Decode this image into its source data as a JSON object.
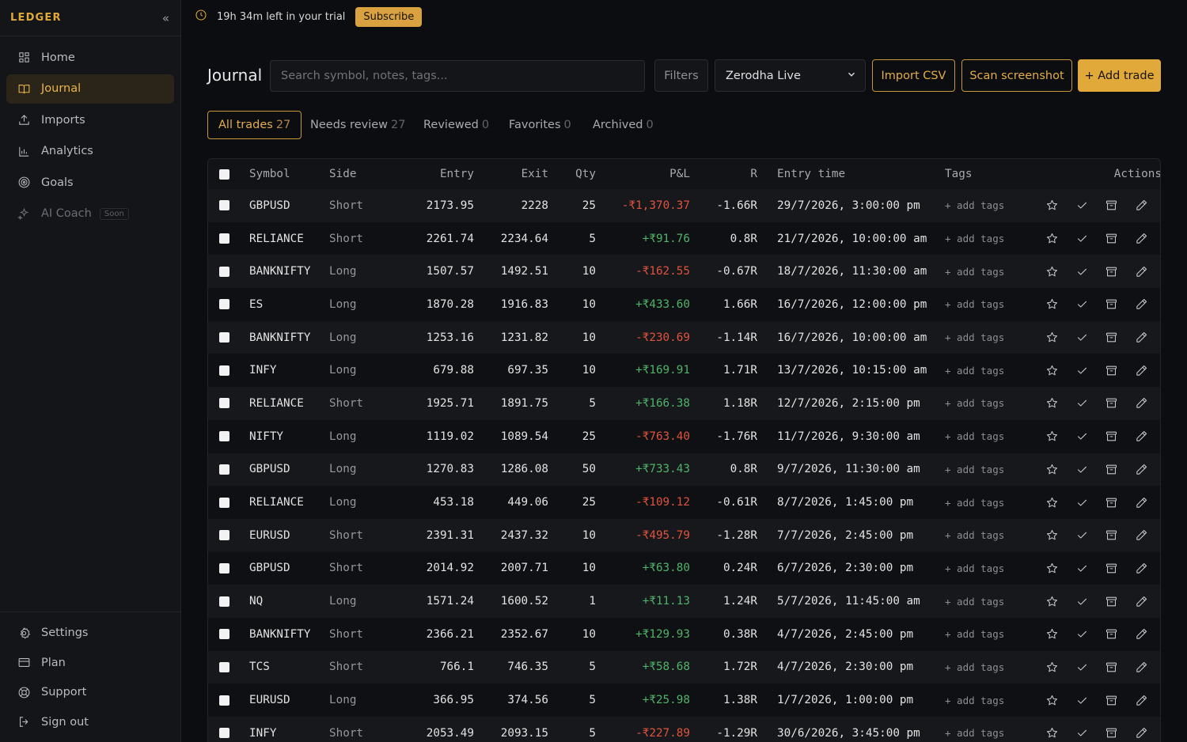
{
  "app": {
    "brand": "LEDGER"
  },
  "sidebar": {
    "items": [
      {
        "label": "Home",
        "icon": "grid-icon"
      },
      {
        "label": "Journal",
        "icon": "book-icon",
        "active": true
      },
      {
        "label": "Imports",
        "icon": "upload-icon"
      },
      {
        "label": "Analytics",
        "icon": "bar-chart-icon"
      },
      {
        "label": "Goals",
        "icon": "target-icon"
      },
      {
        "label": "AI Coach",
        "icon": "sparkles-icon",
        "badge": "Soon"
      }
    ],
    "bottom": [
      {
        "label": "Settings",
        "icon": "gear-icon"
      },
      {
        "label": "Plan",
        "icon": "card-icon"
      },
      {
        "label": "Support",
        "icon": "lifebuoy-icon"
      },
      {
        "label": "Sign out",
        "icon": "logout-icon"
      }
    ]
  },
  "topbar": {
    "trial_text": "19h 34m left in your trial",
    "subscribe_label": "Subscribe"
  },
  "header": {
    "title": "Journal",
    "search_placeholder": "Search symbol, notes, tags...",
    "filters_label": "Filters",
    "account_selected": "Zerodha Live",
    "import_label": "Import CSV",
    "scan_label": "Scan screenshot",
    "add_label": "+ Add trade"
  },
  "tabs": [
    {
      "label": "All trades",
      "count": "27",
      "active": true
    },
    {
      "label": "Needs review",
      "count": "27"
    },
    {
      "label": "Reviewed",
      "count": "0"
    },
    {
      "label": "Favorites",
      "count": "0"
    },
    {
      "label": "Archived",
      "count": "0"
    }
  ],
  "table": {
    "columns": [
      "Symbol",
      "Side",
      "Entry",
      "Exit",
      "Qty",
      "P&L",
      "R",
      "Entry time",
      "Tags",
      "Actions"
    ],
    "add_tags_label": "+ add tags",
    "rows": [
      {
        "symbol": "GBPUSD",
        "side": "Short",
        "entry": "2173.95",
        "exit": "2228",
        "qty": "25",
        "pnl": "-₹1,370.37",
        "r": "-1.66R",
        "time": "29/7/2026, 3:00:00 pm"
      },
      {
        "symbol": "RELIANCE",
        "side": "Short",
        "entry": "2261.74",
        "exit": "2234.64",
        "qty": "5",
        "pnl": "+₹91.76",
        "r": "0.8R",
        "time": "21/7/2026, 10:00:00 am"
      },
      {
        "symbol": "BANKNIFTY",
        "side": "Long",
        "entry": "1507.57",
        "exit": "1492.51",
        "qty": "10",
        "pnl": "-₹162.55",
        "r": "-0.67R",
        "time": "18/7/2026, 11:30:00 am"
      },
      {
        "symbol": "ES",
        "side": "Long",
        "entry": "1870.28",
        "exit": "1916.83",
        "qty": "10",
        "pnl": "+₹433.60",
        "r": "1.66R",
        "time": "16/7/2026, 12:00:00 pm"
      },
      {
        "symbol": "BANKNIFTY",
        "side": "Long",
        "entry": "1253.16",
        "exit": "1231.82",
        "qty": "10",
        "pnl": "-₹230.69",
        "r": "-1.14R",
        "time": "16/7/2026, 10:00:00 am"
      },
      {
        "symbol": "INFY",
        "side": "Long",
        "entry": "679.88",
        "exit": "697.35",
        "qty": "10",
        "pnl": "+₹169.91",
        "r": "1.71R",
        "time": "13/7/2026, 10:15:00 am"
      },
      {
        "symbol": "RELIANCE",
        "side": "Short",
        "entry": "1925.71",
        "exit": "1891.75",
        "qty": "5",
        "pnl": "+₹166.38",
        "r": "1.18R",
        "time": "12/7/2026, 2:15:00 pm"
      },
      {
        "symbol": "NIFTY",
        "side": "Long",
        "entry": "1119.02",
        "exit": "1089.54",
        "qty": "25",
        "pnl": "-₹763.40",
        "r": "-1.76R",
        "time": "11/7/2026, 9:30:00 am"
      },
      {
        "symbol": "GBPUSD",
        "side": "Long",
        "entry": "1270.83",
        "exit": "1286.08",
        "qty": "50",
        "pnl": "+₹733.43",
        "r": "0.8R",
        "time": "9/7/2026, 11:30:00 am"
      },
      {
        "symbol": "RELIANCE",
        "side": "Long",
        "entry": "453.18",
        "exit": "449.06",
        "qty": "25",
        "pnl": "-₹109.12",
        "r": "-0.61R",
        "time": "8/7/2026, 1:45:00 pm"
      },
      {
        "symbol": "EURUSD",
        "side": "Short",
        "entry": "2391.31",
        "exit": "2437.32",
        "qty": "10",
        "pnl": "-₹495.79",
        "r": "-1.28R",
        "time": "7/7/2026, 2:45:00 pm"
      },
      {
        "symbol": "GBPUSD",
        "side": "Short",
        "entry": "2014.92",
        "exit": "2007.71",
        "qty": "10",
        "pnl": "+₹63.80",
        "r": "0.24R",
        "time": "6/7/2026, 2:30:00 pm"
      },
      {
        "symbol": "NQ",
        "side": "Long",
        "entry": "1571.24",
        "exit": "1600.52",
        "qty": "1",
        "pnl": "+₹11.13",
        "r": "1.24R",
        "time": "5/7/2026, 11:45:00 am"
      },
      {
        "symbol": "BANKNIFTY",
        "side": "Short",
        "entry": "2366.21",
        "exit": "2352.67",
        "qty": "10",
        "pnl": "+₹129.93",
        "r": "0.38R",
        "time": "4/7/2026, 2:45:00 pm"
      },
      {
        "symbol": "TCS",
        "side": "Short",
        "entry": "766.1",
        "exit": "746.35",
        "qty": "5",
        "pnl": "+₹58.68",
        "r": "1.72R",
        "time": "4/7/2026, 2:30:00 pm"
      },
      {
        "symbol": "EURUSD",
        "side": "Long",
        "entry": "366.95",
        "exit": "374.56",
        "qty": "5",
        "pnl": "+₹25.98",
        "r": "1.38R",
        "time": "1/7/2026, 1:00:00 pm"
      },
      {
        "symbol": "INFY",
        "side": "Short",
        "entry": "2053.49",
        "exit": "2093.15",
        "qty": "5",
        "pnl": "-₹227.89",
        "r": "-1.29R",
        "time": "30/6/2026, 3:45:00 pm"
      }
    ]
  },
  "colors": {
    "accent": "#e0a93a",
    "positive": "#4fb36a",
    "negative": "#e0533f"
  }
}
